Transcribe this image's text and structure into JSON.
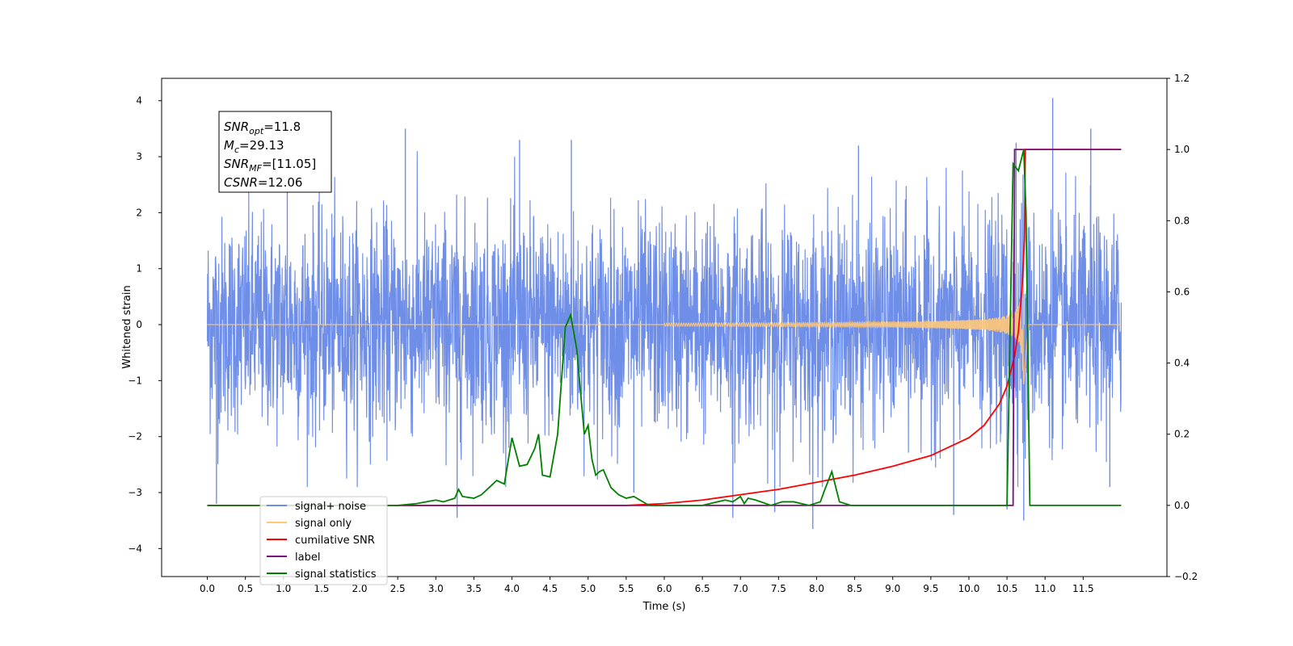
{
  "chart_data": {
    "type": "line",
    "title": "",
    "xlabel": "Time (s)",
    "ylabel_left": "Whitened strain",
    "ylabel_right": "",
    "xlim": [
      -0.6,
      12.6
    ],
    "ylim_left": [
      -4.5,
      4.4
    ],
    "ylim_right": [
      -0.2,
      1.2
    ],
    "x_ticks": [
      0.0,
      0.5,
      1.0,
      1.5,
      2.0,
      2.5,
      3.0,
      3.5,
      4.0,
      4.5,
      5.0,
      5.5,
      6.0,
      6.5,
      7.0,
      7.5,
      8.0,
      8.5,
      9.0,
      9.5,
      10.0,
      10.5,
      11.0,
      11.5
    ],
    "x_tick_labels": [
      "0.0",
      "0.5",
      "1.0",
      "1.5",
      "2.0",
      "2.5",
      "3.0",
      "3.5",
      "4.0",
      "4.5",
      "5.0",
      "5.5",
      "6.0",
      "6.5",
      "7.0",
      "7.5",
      "8.0",
      "8.5",
      "9.0",
      "9.5",
      "10.0",
      "10.5",
      "11.0",
      "11.5"
    ],
    "y_left_ticks": [
      -4,
      -3,
      -2,
      -1,
      0,
      1,
      2,
      3,
      4
    ],
    "y_left_tick_labels": [
      "−4",
      "−3",
      "−2",
      "−1",
      "0",
      "1",
      "2",
      "3",
      "4"
    ],
    "y_right_ticks": [
      -0.2,
      0.0,
      0.2,
      0.4,
      0.6,
      0.8,
      1.0,
      1.2
    ],
    "y_right_tick_labels": [
      "−0.2",
      "0.0",
      "0.2",
      "0.4",
      "0.6",
      "0.8",
      "1.0",
      "1.2"
    ],
    "grid": false,
    "legend_position": "bottom-left",
    "legend": [
      {
        "label": "signal+ noise",
        "color": "#6f8ee8"
      },
      {
        "label": "signal only",
        "color": "#ffc878"
      },
      {
        "label": "cumilative SNR",
        "color": "#ff0000"
      },
      {
        "label": "label",
        "color": "#7b0f7b"
      },
      {
        "label": "signal statistics",
        "color": "#008000"
      }
    ],
    "annotation": {
      "lines": [
        {
          "base": "SNR",
          "sub": "opt",
          "text": "=11.8"
        },
        {
          "base": "M",
          "sub": "c",
          "text": "=29.13"
        },
        {
          "base": "SNR",
          "sub": "MF",
          "text": "=[11.05]"
        },
        {
          "base": "CSNR",
          "sub": "",
          "text": "=12.06"
        }
      ]
    },
    "series": [
      {
        "name": "signal+ noise",
        "axis": "left",
        "color": "#6f8ee8",
        "x_range": [
          0.0,
          12.0
        ],
        "core_amplitude": [
          -1.8,
          2.2
        ],
        "peak_range": [
          -3.6,
          4.0
        ],
        "spikes": [
          {
            "x": 0.12,
            "y": -3.2
          },
          {
            "x": 1.05,
            "y": 3.1
          },
          {
            "x": 2.6,
            "y": 3.5
          },
          {
            "x": 3.28,
            "y": -3.45
          },
          {
            "x": 4.1,
            "y": 3.3
          },
          {
            "x": 4.78,
            "y": 3.3
          },
          {
            "x": 5.6,
            "y": -3.0
          },
          {
            "x": 6.9,
            "y": -3.45
          },
          {
            "x": 7.45,
            "y": -3.35
          },
          {
            "x": 7.95,
            "y": -3.65
          },
          {
            "x": 8.55,
            "y": 3.2
          },
          {
            "x": 9.8,
            "y": -3.4
          },
          {
            "x": 10.5,
            "y": -3.3
          },
          {
            "x": 10.62,
            "y": 3.25
          },
          {
            "x": 10.72,
            "y": -3.5
          },
          {
            "x": 11.1,
            "y": 4.05
          },
          {
            "x": 11.6,
            "y": 3.5
          },
          {
            "x": 11.85,
            "y": -2.9
          }
        ]
      },
      {
        "name": "signal only",
        "axis": "left",
        "color": "#ffc878",
        "x_range": [
          0.0,
          12.0
        ],
        "chirp_start": 6.0,
        "merger_time": 10.72,
        "peak_amplitude": 1.5
      },
      {
        "name": "cumilative SNR",
        "axis": "right",
        "color": "#ff0000",
        "x": [
          0.0,
          5.5,
          6.0,
          6.5,
          7.0,
          7.5,
          8.0,
          8.5,
          9.0,
          9.5,
          10.0,
          10.2,
          10.4,
          10.5,
          10.6,
          10.65,
          10.7,
          10.73,
          10.74,
          11.0,
          12.0
        ],
        "y": [
          0.0,
          0.0,
          0.005,
          0.015,
          0.03,
          0.045,
          0.065,
          0.085,
          0.11,
          0.14,
          0.19,
          0.225,
          0.285,
          0.335,
          0.42,
          0.49,
          0.62,
          0.75,
          1.0,
          1.0,
          1.0
        ]
      },
      {
        "name": "label",
        "axis": "right",
        "color": "#7b0f7b",
        "x": [
          0.0,
          10.58,
          10.6,
          10.75,
          10.76,
          12.0
        ],
        "y": [
          0.0,
          0.0,
          1.0,
          1.0,
          1.0,
          1.0
        ]
      },
      {
        "name": "signal statistics",
        "axis": "right",
        "color": "#008000",
        "x": [
          0.0,
          2.5,
          2.75,
          3.0,
          3.1,
          3.25,
          3.3,
          3.35,
          3.5,
          3.6,
          3.7,
          3.8,
          3.9,
          4.0,
          4.1,
          4.2,
          4.3,
          4.35,
          4.4,
          4.5,
          4.6,
          4.7,
          4.77,
          4.85,
          4.95,
          5.0,
          5.05,
          5.1,
          5.15,
          5.2,
          5.3,
          5.4,
          5.5,
          5.6,
          5.8,
          6.0,
          6.5,
          6.8,
          6.9,
          7.0,
          7.05,
          7.1,
          7.2,
          7.4,
          7.55,
          7.7,
          7.9,
          8.05,
          8.1,
          8.2,
          8.3,
          8.45,
          10.4,
          10.5,
          10.58,
          10.65,
          10.72,
          10.75,
          10.8,
          12.0
        ],
        "y": [
          0.0,
          0.0,
          0.005,
          0.015,
          0.01,
          0.02,
          0.045,
          0.025,
          0.02,
          0.03,
          0.05,
          0.07,
          0.06,
          0.19,
          0.11,
          0.115,
          0.16,
          0.2,
          0.085,
          0.08,
          0.2,
          0.5,
          0.535,
          0.44,
          0.2,
          0.225,
          0.13,
          0.085,
          0.095,
          0.1,
          0.05,
          0.03,
          0.02,
          0.025,
          0.0,
          0.0,
          0.0,
          0.015,
          0.01,
          0.025,
          0.005,
          0.02,
          0.015,
          0.0,
          0.01,
          0.01,
          0.0,
          0.01,
          0.04,
          0.095,
          0.01,
          0.0,
          0.0,
          0.0,
          0.96,
          0.94,
          1.0,
          0.82,
          0.0,
          0.0
        ]
      }
    ]
  }
}
